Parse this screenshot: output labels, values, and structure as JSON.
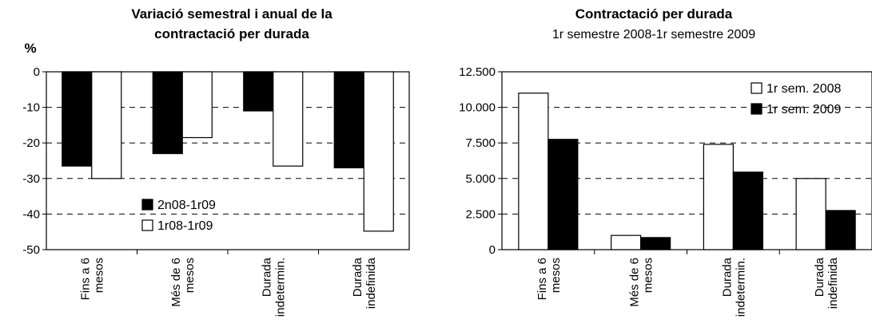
{
  "chart_data": [
    {
      "type": "bar",
      "title_lines": [
        "Variació semestral i anual de la",
        "contractació per durada"
      ],
      "ylabel": "%",
      "xlabel": "",
      "ylim": [
        -50,
        0
      ],
      "yticks": [
        "0",
        "-10",
        "-20",
        "-30",
        "-40",
        "-50"
      ],
      "grid": true,
      "legend_position": "inside-bottom-center",
      "categories": [
        [
          "Fins a 6",
          "mesos"
        ],
        [
          "Més de 6",
          "mesos"
        ],
        [
          "Durada",
          "indetermin."
        ],
        [
          "Durada",
          "indefinida"
        ]
      ],
      "series": [
        {
          "name": "2n08-1r09",
          "color": "#000000",
          "values": [
            -26.5,
            -23,
            -11,
            -27
          ]
        },
        {
          "name": "1r08-1r09",
          "color": "#ffffff",
          "values": [
            -30,
            -18.5,
            -26.5,
            -44.8
          ]
        }
      ]
    },
    {
      "type": "bar",
      "title_lines": [
        "Contractació per durada"
      ],
      "subtitle": "1r semestre 2008-1r semestre 2009",
      "ylabel": "",
      "xlabel": "",
      "ylim": [
        0,
        12500
      ],
      "yticks": [
        "12.500",
        "10.000",
        "7.500",
        "5.000",
        "2.500",
        "0"
      ],
      "grid": true,
      "legend_position": "top-right",
      "categories": [
        [
          "Fins a 6",
          "mesos"
        ],
        [
          "Més de 6",
          "mesos"
        ],
        [
          "Durada",
          "indetermin."
        ],
        [
          "Durada",
          "indefinida"
        ]
      ],
      "series": [
        {
          "name": "1r sem. 2008",
          "color": "#ffffff",
          "values": [
            11000,
            1000,
            7400,
            5000
          ]
        },
        {
          "name": "1r sem. 2009",
          "color": "#000000",
          "values": [
            7750,
            850,
            5450,
            2750
          ]
        }
      ]
    }
  ]
}
